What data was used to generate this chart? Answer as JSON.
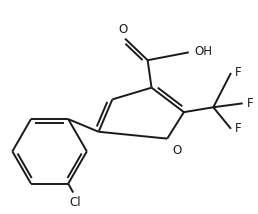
{
  "background": "#ffffff",
  "line_color": "#1a1a1a",
  "line_width": 1.4,
  "font_size": 8.5,
  "fig_width": 2.58,
  "fig_height": 2.14,
  "dpi": 100,
  "xlim": [
    0,
    258
  ],
  "ylim": [
    0,
    214
  ]
}
